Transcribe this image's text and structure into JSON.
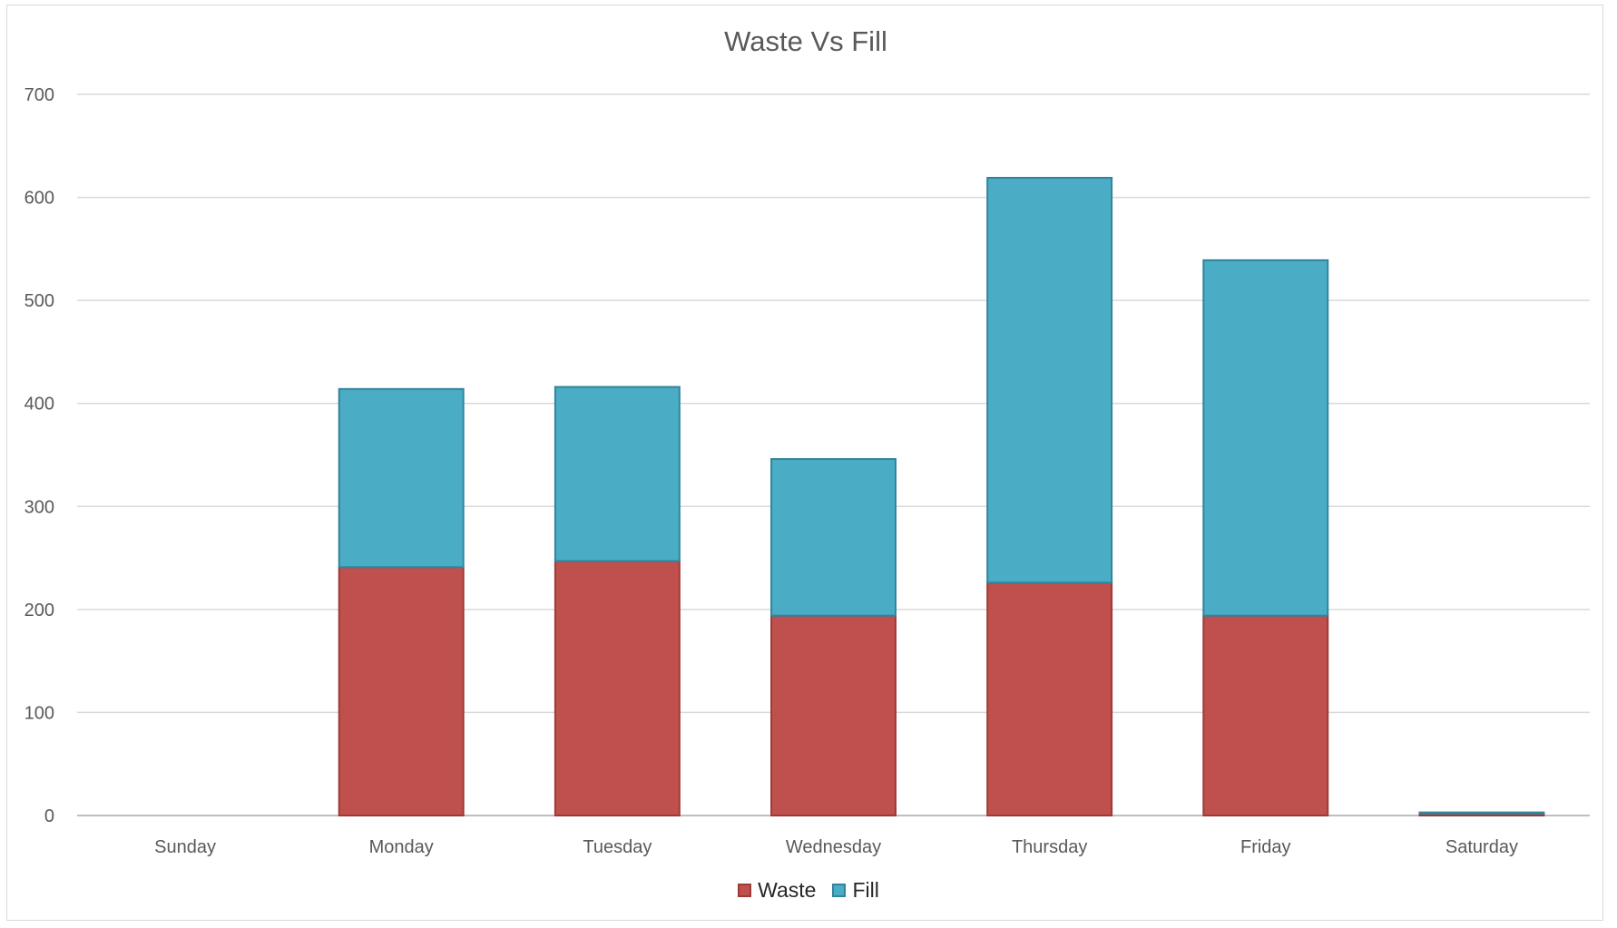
{
  "chart_data": {
    "type": "bar",
    "stacked": true,
    "title": "Waste Vs Fill",
    "categories": [
      "Sunday",
      "Monday",
      "Tuesday",
      "Wednesday",
      "Thursday",
      "Friday",
      "Saturday"
    ],
    "series": [
      {
        "name": "Waste",
        "values": [
          0,
          241,
          247,
          194,
          226,
          194,
          2
        ],
        "color": "#c0504d",
        "stroke": "#9b3b38"
      },
      {
        "name": "Fill",
        "values": [
          0,
          173,
          169,
          152,
          393,
          345,
          1
        ],
        "color": "#4bacc6",
        "stroke": "#31849b"
      }
    ],
    "ylim": [
      0,
      700
    ],
    "yticks": [
      "0",
      "100",
      "200",
      "300",
      "400",
      "500",
      "600",
      "700"
    ],
    "grid": true,
    "legend_position": "bottom"
  }
}
